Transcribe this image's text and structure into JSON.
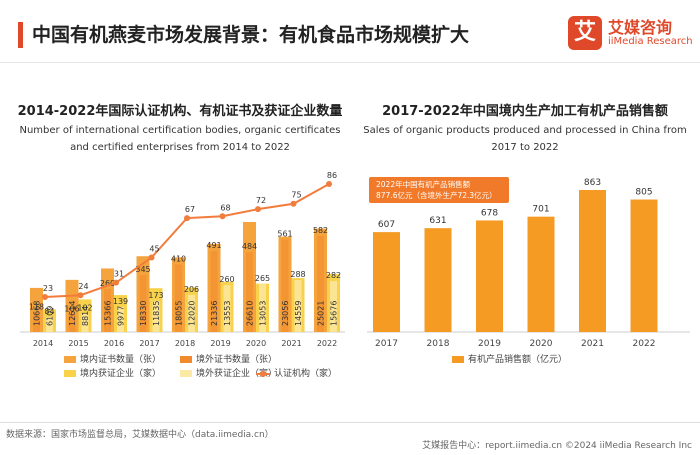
{
  "header": {
    "title": "中国有机燕麦市场发展背景：有机食品市场规模扩大",
    "logo_mark": "艾",
    "logo_cn": "艾媒咨询",
    "logo_en": "iiMedia Research"
  },
  "colors": {
    "accent": "#E0482A",
    "domestic_cert": "#F5A33C",
    "foreign_cert": "#F08A2C",
    "domestic_ent": "#F7D24A",
    "foreign_ent": "#FBE9A6",
    "line": "#F27C3C",
    "sales_bar": "#F59A23"
  },
  "chart_data": [
    {
      "type": "bar",
      "title": "2014-2022年国际认证机构、有机证书及获证企业数量",
      "subtitle": "Number of international certification bodies, organic certificates and certified enterprises from 2014 to 2022",
      "categories": [
        "2014",
        "2015",
        "2016",
        "2017",
        "2018",
        "2019",
        "2020",
        "2021",
        "2022"
      ],
      "series": [
        {
          "name": "境内证书数量（张）",
          "values": [
            10668,
            12614,
            15366,
            18330,
            18055,
            21336,
            26610,
            23056,
            25021
          ]
        },
        {
          "name": "境外证书数量（张）",
          "values": [
            118,
            106,
            260,
            345,
            410,
            491,
            484,
            561,
            582
          ]
        },
        {
          "name": "境内获证企业（家）",
          "values": [
            6109,
            8814,
            9977,
            11835,
            12020,
            13553,
            13053,
            14559,
            15676
          ]
        },
        {
          "name": "境外获证企业（家）",
          "values": [
            84,
            102,
            139,
            173,
            206,
            260,
            265,
            288,
            282
          ]
        },
        {
          "name": "认证机构（家）",
          "values": [
            23,
            24,
            31,
            45,
            67,
            68,
            72,
            75,
            86
          ],
          "type": "line"
        }
      ],
      "legend_position": "bottom"
    },
    {
      "type": "bar",
      "title": "2017-2022年中国境内生产加工有机产品销售额",
      "subtitle": "Sales of organic products produced and processed in China from 2017 to 2022",
      "categories": [
        "2017",
        "2018",
        "2019",
        "2020",
        "2021",
        "2022"
      ],
      "series": [
        {
          "name": "有机产品销售额（亿元）",
          "values": [
            607,
            631,
            678,
            701,
            863,
            805
          ]
        }
      ],
      "annotation": [
        "2022年中国有机产品销售额",
        "877.6亿元（含境外生产72.3亿元）"
      ],
      "legend_position": "bottom"
    }
  ],
  "footer": {
    "source": "数据来源：国家市场监督总局，艾媒数据中心（data.iimedia.cn）",
    "right": "艾媒报告中心：report.iimedia.cn   ©2024  iiMedia Research Inc"
  }
}
